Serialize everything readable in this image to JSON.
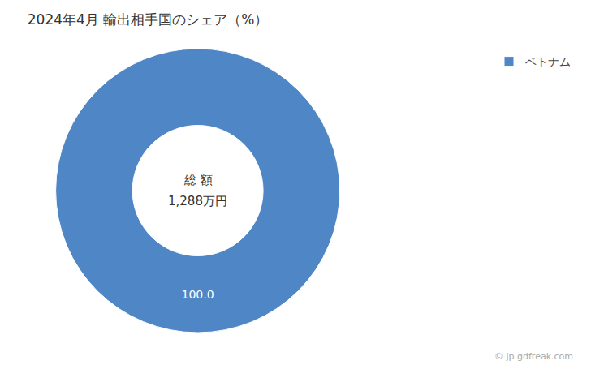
{
  "chart_data": {
    "type": "donut",
    "title": "2024年4月 輸出相手国のシェア（%）",
    "categories": [
      "ベトナム"
    ],
    "values": [
      100.0
    ],
    "value_labels": [
      "100.0"
    ],
    "colors": [
      "#4f86c6"
    ],
    "data_labels": true,
    "legend": "upper right",
    "annotations": [
      "総 額",
      "1,288万円",
      "© jp.gdfreak.com"
    ]
  }
}
